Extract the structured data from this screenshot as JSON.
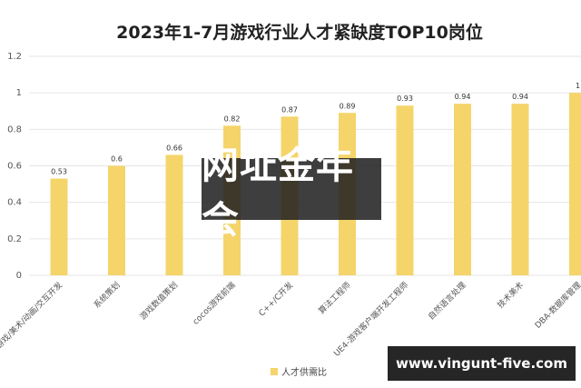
{
  "chart_data": {
    "type": "bar",
    "title": "2023年1-7月游戏行业人才紧缺度TOP10岗位",
    "categories": [
      "游戏/美术/动画/交互开发",
      "系统策划",
      "游戏数值策划",
      "cocos游戏前端",
      "C++/C开发",
      "算法工程师",
      "UE4-游戏客户端开发工程师",
      "自然语言处理",
      "技术美术",
      "DBA-数据库管理"
    ],
    "values": [
      0.53,
      0.6,
      0.66,
      0.82,
      0.87,
      0.89,
      0.93,
      0.94,
      0.94,
      1
    ],
    "value_labels": [
      "0.53",
      "0.6",
      "0.66",
      "0.82",
      "0.87",
      "0.89",
      "0.93",
      "0.94",
      "0.94",
      "1"
    ],
    "ylim": [
      0,
      1.2
    ],
    "yticks": [
      "0",
      "0.2",
      "0.4",
      "0.6",
      "0.8",
      "1",
      "1.2"
    ],
    "legend": "人才供需比",
    "legend_position": "bottom",
    "grid": true,
    "bar_color": "#F5D46A"
  },
  "overlay_text": "网址金年会",
  "url_text": "www.vingunt-five.com"
}
